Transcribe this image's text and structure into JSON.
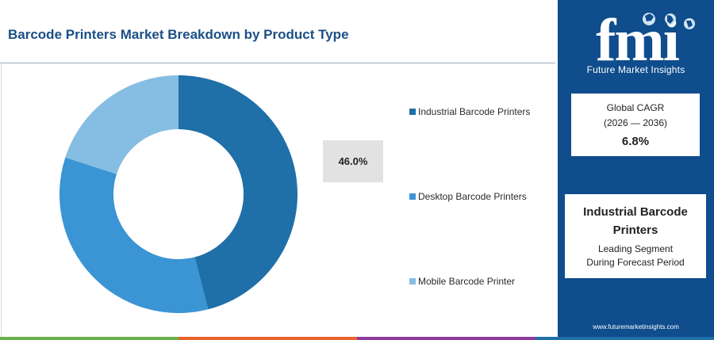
{
  "title": "Barcode Printers Market Breakdown by Product Type",
  "chart_data": {
    "type": "pie",
    "title": "Barcode Printers Market Breakdown by Product Type",
    "donut": true,
    "categories": [
      "Industrial Barcode Printers",
      "Desktop Barcode Printers",
      "Mobile Barcode Printer"
    ],
    "values": [
      46.0,
      34.0,
      20.0
    ],
    "colors": [
      "#1f6fa8",
      "#3b94d4",
      "#86bde3"
    ],
    "legend_position": "right",
    "annotations": [
      {
        "label": "46.0%",
        "category": "Industrial Barcode Printers"
      }
    ]
  },
  "sidebar": {
    "logo_text": "fmi",
    "logo_subtitle": "Future Market Insights",
    "cagr_label": "Global CAGR",
    "cagr_period": "(2026 — 2036)",
    "cagr_value": "6.8%",
    "segment_name": "Industrial Barcode Printers",
    "segment_line1": "Leading Segment",
    "segment_line2": "During Forecast Period",
    "website": "www.futuremarketinsights.com",
    "background_color": "#0f4d8c"
  },
  "footer_colors": [
    "#6ab04c",
    "#e8622c",
    "#8e3b9e",
    "#1f6fa8"
  ]
}
